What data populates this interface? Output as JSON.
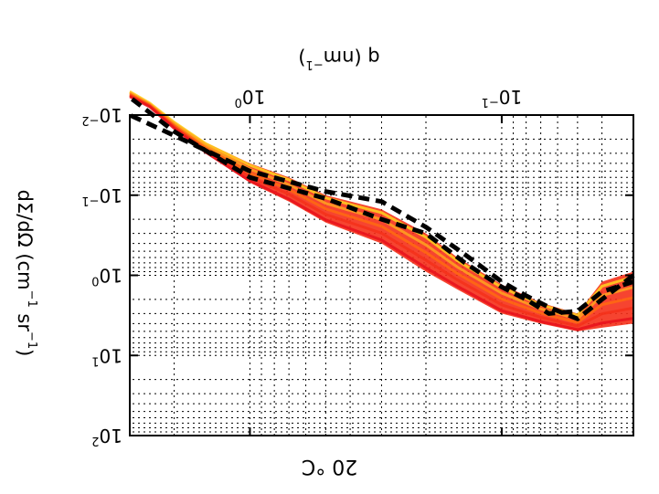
{
  "chart_data": {
    "type": "line",
    "title": "20 °C",
    "xlabel": "q (nm",
    "xlabel_sup": "−1",
    "ylabel": "dΣ/dΩ (cm",
    "ylabel_sup1": "−1",
    "ylabel_mid": " sr",
    "ylabel_sup2": "−1",
    "ylabel_end": ")",
    "x_scale": "log",
    "y_scale": "log",
    "xlim": [
      0.03,
      3
    ],
    "ylim": [
      0.01,
      100
    ],
    "x_tick_labels": [
      {
        "value": 0.1,
        "base": "10",
        "exp": "−1"
      },
      {
        "value": 1,
        "base": "10",
        "exp": "0"
      }
    ],
    "y_tick_labels": [
      {
        "value": 0.01,
        "base": "10",
        "exp": "−2"
      },
      {
        "value": 0.1,
        "base": "10",
        "exp": "−1"
      },
      {
        "value": 1,
        "base": "10",
        "exp": "0"
      },
      {
        "value": 10,
        "base": "10",
        "exp": "1"
      },
      {
        "value": 100,
        "base": "10",
        "exp": "2"
      }
    ],
    "grid": true,
    "band_colors": [
      "#ffd21e",
      "#ffa31e",
      "#ff6a10",
      "#f5301a",
      "#e8101c"
    ],
    "dashed_color": "#000000",
    "band": {
      "x": [
        0.03,
        0.04,
        0.05,
        0.07,
        0.1,
        0.15,
        0.2,
        0.3,
        0.5,
        0.7,
        1.0,
        1.5,
        2.0,
        2.5,
        3.0
      ],
      "upper": [
        4.0,
        4.5,
        5.0,
        4.0,
        3.0,
        1.5,
        0.9,
        0.4,
        0.22,
        0.12,
        0.07,
        0.03,
        0.015,
        0.008,
        0.006
      ],
      "lower": [
        0.9,
        1.2,
        3.0,
        2.2,
        1.3,
        0.6,
        0.3,
        0.15,
        0.1,
        0.06,
        0.04,
        0.022,
        0.012,
        0.007,
        0.005
      ]
    },
    "series": [
      {
        "x": [
          0.03,
          0.04,
          0.05,
          0.065,
          0.08,
          0.1,
          0.14,
          0.2,
          0.3,
          0.5,
          1.0,
          2.0,
          3.0
        ],
        "y": [
          1.0,
          2.0,
          3.5,
          2.5,
          1.8,
          1.2,
          0.55,
          0.25,
          0.12,
          0.09,
          0.05,
          0.018,
          0.01
        ]
      },
      {
        "x": [
          0.03,
          0.04,
          0.05,
          0.065,
          0.08,
          0.1,
          0.14,
          0.2,
          0.3,
          0.5,
          1.0,
          2.0,
          3.0
        ],
        "y": [
          1.2,
          1.6,
          2.8,
          3.0,
          2.0,
          1.4,
          0.7,
          0.3,
          0.2,
          0.11,
          0.06,
          0.016,
          0.006
        ]
      }
    ]
  }
}
